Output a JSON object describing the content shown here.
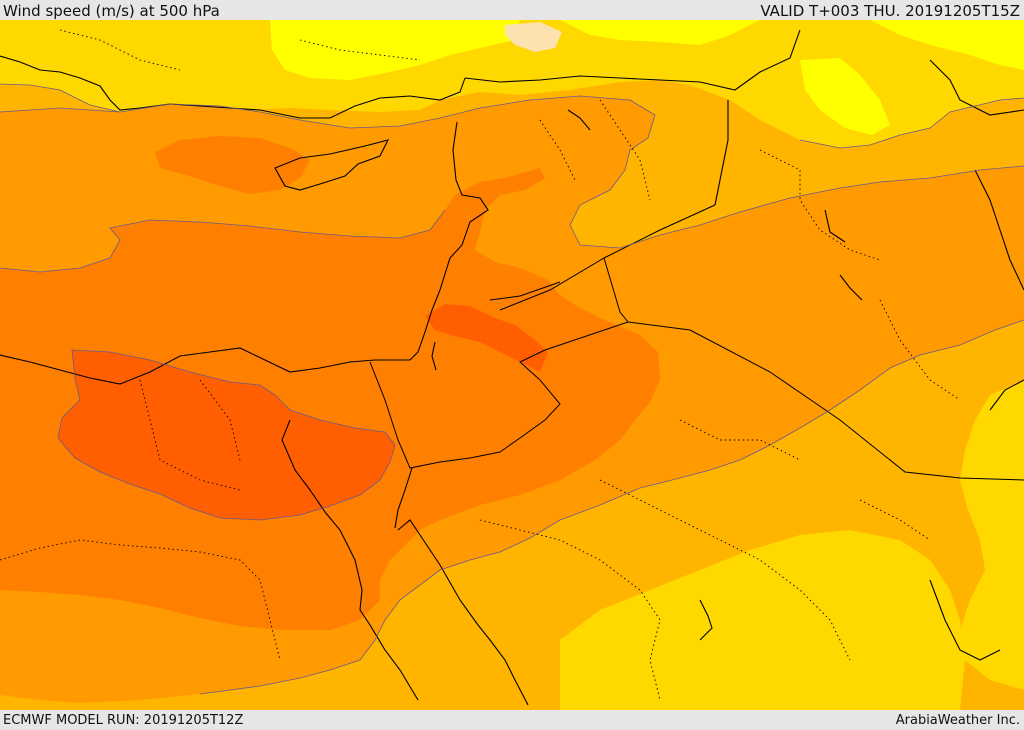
{
  "header": {
    "title": "Wind speed (m/s) at 500 hPa",
    "valid": "VALID T+003 THU. 20191205T15Z"
  },
  "footer": {
    "model_run": "ECMWF MODEL RUN: 20191205T12Z",
    "credit": "ArabiaWeather Inc."
  },
  "map": {
    "colors": {
      "band_light_peach": "#fde2b0",
      "band_yellow": "#ffff00",
      "band_gold": "#ffd800",
      "band_amber": "#ffb400",
      "band_orange": "#ff9a00",
      "band_dark_orange": "#ff7f00",
      "band_red_orange": "#ff5f00",
      "coastline": "#000000",
      "contour": "#6a5a8a"
    }
  }
}
